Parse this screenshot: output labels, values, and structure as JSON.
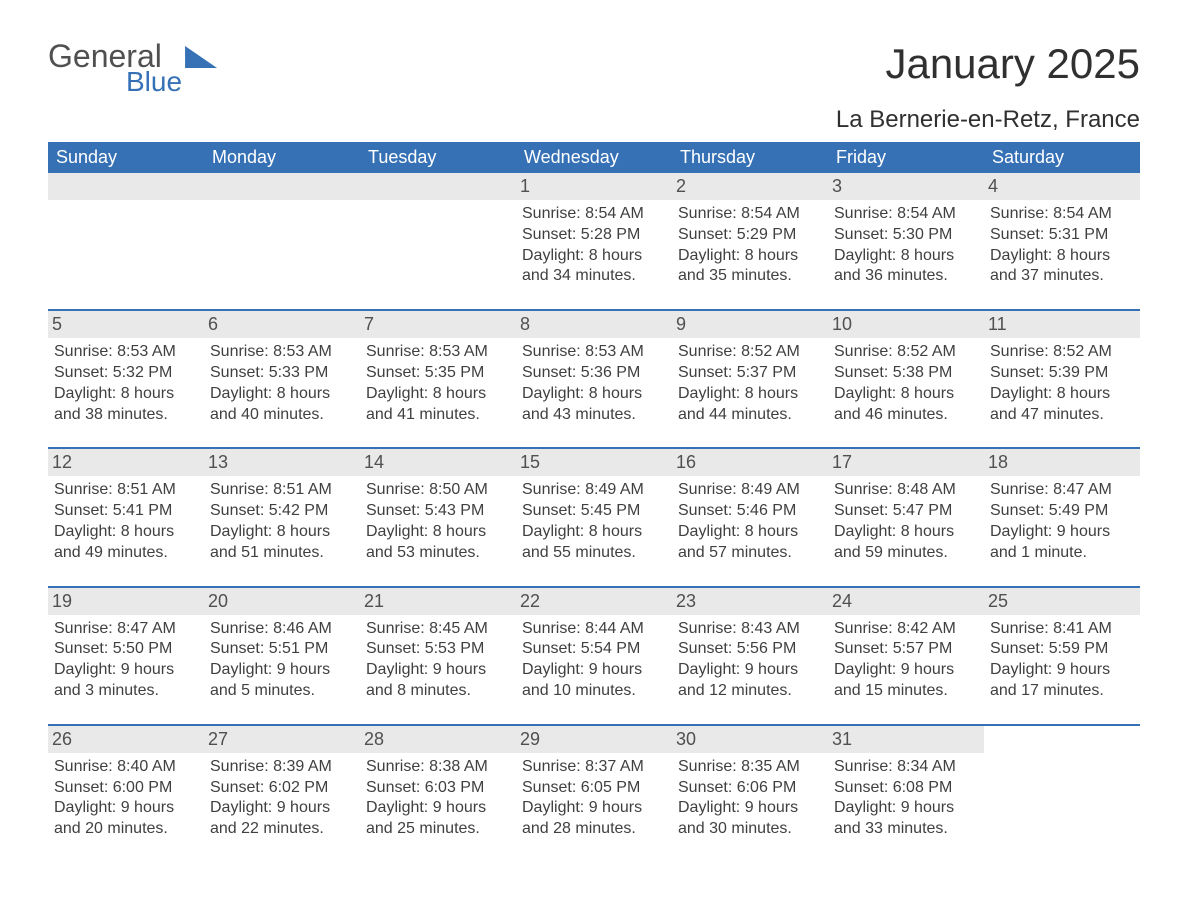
{
  "logo": {
    "general": "General",
    "blue": "Blue"
  },
  "title": "January 2025",
  "location": "La Bernerie-en-Retz, France",
  "colors": {
    "header_bg": "#3671b6",
    "header_text": "#ffffff",
    "daynum_bg": "#e9e9e9",
    "text": "#404040",
    "logo_gray": "#505050",
    "logo_blue": "#3671b6",
    "background": "#ffffff"
  },
  "typography": {
    "title_fontsize": 42,
    "location_fontsize": 24,
    "weekday_fontsize": 18,
    "daynum_fontsize": 18,
    "info_fontsize": 16
  },
  "weekdays": [
    "Sunday",
    "Monday",
    "Tuesday",
    "Wednesday",
    "Thursday",
    "Friday",
    "Saturday"
  ],
  "weeks": [
    [
      null,
      null,
      null,
      {
        "n": "1",
        "sunrise": "Sunrise: 8:54 AM",
        "sunset": "Sunset: 5:28 PM",
        "dl1": "Daylight: 8 hours",
        "dl2": "and 34 minutes."
      },
      {
        "n": "2",
        "sunrise": "Sunrise: 8:54 AM",
        "sunset": "Sunset: 5:29 PM",
        "dl1": "Daylight: 8 hours",
        "dl2": "and 35 minutes."
      },
      {
        "n": "3",
        "sunrise": "Sunrise: 8:54 AM",
        "sunset": "Sunset: 5:30 PM",
        "dl1": "Daylight: 8 hours",
        "dl2": "and 36 minutes."
      },
      {
        "n": "4",
        "sunrise": "Sunrise: 8:54 AM",
        "sunset": "Sunset: 5:31 PM",
        "dl1": "Daylight: 8 hours",
        "dl2": "and 37 minutes."
      }
    ],
    [
      {
        "n": "5",
        "sunrise": "Sunrise: 8:53 AM",
        "sunset": "Sunset: 5:32 PM",
        "dl1": "Daylight: 8 hours",
        "dl2": "and 38 minutes."
      },
      {
        "n": "6",
        "sunrise": "Sunrise: 8:53 AM",
        "sunset": "Sunset: 5:33 PM",
        "dl1": "Daylight: 8 hours",
        "dl2": "and 40 minutes."
      },
      {
        "n": "7",
        "sunrise": "Sunrise: 8:53 AM",
        "sunset": "Sunset: 5:35 PM",
        "dl1": "Daylight: 8 hours",
        "dl2": "and 41 minutes."
      },
      {
        "n": "8",
        "sunrise": "Sunrise: 8:53 AM",
        "sunset": "Sunset: 5:36 PM",
        "dl1": "Daylight: 8 hours",
        "dl2": "and 43 minutes."
      },
      {
        "n": "9",
        "sunrise": "Sunrise: 8:52 AM",
        "sunset": "Sunset: 5:37 PM",
        "dl1": "Daylight: 8 hours",
        "dl2": "and 44 minutes."
      },
      {
        "n": "10",
        "sunrise": "Sunrise: 8:52 AM",
        "sunset": "Sunset: 5:38 PM",
        "dl1": "Daylight: 8 hours",
        "dl2": "and 46 minutes."
      },
      {
        "n": "11",
        "sunrise": "Sunrise: 8:52 AM",
        "sunset": "Sunset: 5:39 PM",
        "dl1": "Daylight: 8 hours",
        "dl2": "and 47 minutes."
      }
    ],
    [
      {
        "n": "12",
        "sunrise": "Sunrise: 8:51 AM",
        "sunset": "Sunset: 5:41 PM",
        "dl1": "Daylight: 8 hours",
        "dl2": "and 49 minutes."
      },
      {
        "n": "13",
        "sunrise": "Sunrise: 8:51 AM",
        "sunset": "Sunset: 5:42 PM",
        "dl1": "Daylight: 8 hours",
        "dl2": "and 51 minutes."
      },
      {
        "n": "14",
        "sunrise": "Sunrise: 8:50 AM",
        "sunset": "Sunset: 5:43 PM",
        "dl1": "Daylight: 8 hours",
        "dl2": "and 53 minutes."
      },
      {
        "n": "15",
        "sunrise": "Sunrise: 8:49 AM",
        "sunset": "Sunset: 5:45 PM",
        "dl1": "Daylight: 8 hours",
        "dl2": "and 55 minutes."
      },
      {
        "n": "16",
        "sunrise": "Sunrise: 8:49 AM",
        "sunset": "Sunset: 5:46 PM",
        "dl1": "Daylight: 8 hours",
        "dl2": "and 57 minutes."
      },
      {
        "n": "17",
        "sunrise": "Sunrise: 8:48 AM",
        "sunset": "Sunset: 5:47 PM",
        "dl1": "Daylight: 8 hours",
        "dl2": "and 59 minutes."
      },
      {
        "n": "18",
        "sunrise": "Sunrise: 8:47 AM",
        "sunset": "Sunset: 5:49 PM",
        "dl1": "Daylight: 9 hours",
        "dl2": "and 1 minute."
      }
    ],
    [
      {
        "n": "19",
        "sunrise": "Sunrise: 8:47 AM",
        "sunset": "Sunset: 5:50 PM",
        "dl1": "Daylight: 9 hours",
        "dl2": "and 3 minutes."
      },
      {
        "n": "20",
        "sunrise": "Sunrise: 8:46 AM",
        "sunset": "Sunset: 5:51 PM",
        "dl1": "Daylight: 9 hours",
        "dl2": "and 5 minutes."
      },
      {
        "n": "21",
        "sunrise": "Sunrise: 8:45 AM",
        "sunset": "Sunset: 5:53 PM",
        "dl1": "Daylight: 9 hours",
        "dl2": "and 8 minutes."
      },
      {
        "n": "22",
        "sunrise": "Sunrise: 8:44 AM",
        "sunset": "Sunset: 5:54 PM",
        "dl1": "Daylight: 9 hours",
        "dl2": "and 10 minutes."
      },
      {
        "n": "23",
        "sunrise": "Sunrise: 8:43 AM",
        "sunset": "Sunset: 5:56 PM",
        "dl1": "Daylight: 9 hours",
        "dl2": "and 12 minutes."
      },
      {
        "n": "24",
        "sunrise": "Sunrise: 8:42 AM",
        "sunset": "Sunset: 5:57 PM",
        "dl1": "Daylight: 9 hours",
        "dl2": "and 15 minutes."
      },
      {
        "n": "25",
        "sunrise": "Sunrise: 8:41 AM",
        "sunset": "Sunset: 5:59 PM",
        "dl1": "Daylight: 9 hours",
        "dl2": "and 17 minutes."
      }
    ],
    [
      {
        "n": "26",
        "sunrise": "Sunrise: 8:40 AM",
        "sunset": "Sunset: 6:00 PM",
        "dl1": "Daylight: 9 hours",
        "dl2": "and 20 minutes."
      },
      {
        "n": "27",
        "sunrise": "Sunrise: 8:39 AM",
        "sunset": "Sunset: 6:02 PM",
        "dl1": "Daylight: 9 hours",
        "dl2": "and 22 minutes."
      },
      {
        "n": "28",
        "sunrise": "Sunrise: 8:38 AM",
        "sunset": "Sunset: 6:03 PM",
        "dl1": "Daylight: 9 hours",
        "dl2": "and 25 minutes."
      },
      {
        "n": "29",
        "sunrise": "Sunrise: 8:37 AM",
        "sunset": "Sunset: 6:05 PM",
        "dl1": "Daylight: 9 hours",
        "dl2": "and 28 minutes."
      },
      {
        "n": "30",
        "sunrise": "Sunrise: 8:35 AM",
        "sunset": "Sunset: 6:06 PM",
        "dl1": "Daylight: 9 hours",
        "dl2": "and 30 minutes."
      },
      {
        "n": "31",
        "sunrise": "Sunrise: 8:34 AM",
        "sunset": "Sunset: 6:08 PM",
        "dl1": "Daylight: 9 hours",
        "dl2": "and 33 minutes."
      },
      null
    ]
  ]
}
